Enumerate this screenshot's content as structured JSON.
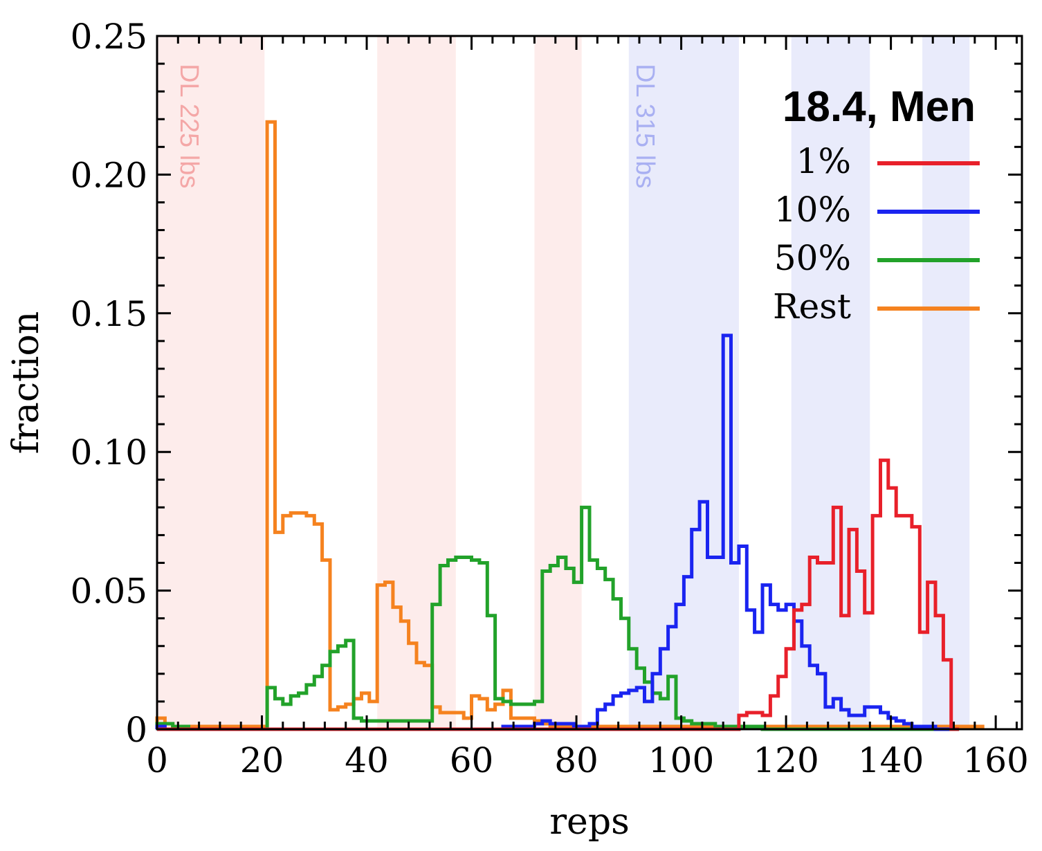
{
  "chart_data": {
    "type": "line",
    "style": "step-histogram",
    "title": "18.4, Men",
    "xlabel": "reps",
    "ylabel": "fraction",
    "xlim": [
      0,
      165
    ],
    "ylim": [
      0,
      0.25
    ],
    "xticks": [
      0,
      20,
      40,
      60,
      80,
      100,
      120,
      140,
      160
    ],
    "xtick_labels": [
      "0",
      "20",
      "40",
      "60",
      "80",
      "100",
      "120",
      "140",
      "160"
    ],
    "yticks": [
      0,
      0.05,
      0.1,
      0.15,
      0.2,
      0.25
    ],
    "ytick_labels": [
      "0",
      "0.05",
      "0.10",
      "0.15",
      "0.20",
      "0.25"
    ],
    "grid": false,
    "legend_position": "top-right",
    "bin_width": 1.5,
    "x_start": 0,
    "bands": [
      {
        "x0": 0,
        "x1": 20.5,
        "color": "#fdeceb"
      },
      {
        "x0": 42,
        "x1": 57,
        "color": "#fdeceb"
      },
      {
        "x0": 72,
        "x1": 81,
        "color": "#fdeceb"
      },
      {
        "x0": 90,
        "x1": 111,
        "color": "#e9ebfb"
      },
      {
        "x0": 121,
        "x1": 136,
        "color": "#e9ebfb"
      },
      {
        "x0": 146,
        "x1": 155,
        "color": "#e9ebfb"
      }
    ],
    "band_labels": [
      {
        "text": "DL 225 lbs",
        "x": 4.5,
        "y": 0.24,
        "color": "#f4a7a7"
      },
      {
        "text": "DL 315 lbs",
        "x": 91.5,
        "y": 0.24,
        "color": "#a9b0f2"
      }
    ],
    "series": [
      {
        "name": "1%",
        "color": "#e8202a",
        "values": [
          0,
          0,
          0,
          0,
          0,
          0,
          0,
          0,
          0,
          0,
          0,
          0,
          0,
          0,
          0,
          0,
          0,
          0,
          0,
          0,
          0,
          0,
          0,
          0,
          0,
          0,
          0,
          0,
          0,
          0,
          0,
          0,
          0,
          0,
          0,
          0,
          0,
          0,
          0,
          0,
          0,
          0,
          0,
          0,
          0,
          0,
          0,
          0,
          0,
          0,
          0,
          0,
          0,
          0,
          0,
          0,
          0,
          0,
          0,
          0,
          0,
          0,
          0,
          0,
          0,
          0,
          0,
          0,
          0,
          0,
          0,
          0,
          0,
          0,
          0.005,
          0.006,
          0.006,
          0.005,
          0.012,
          0.019,
          0.029,
          0.043,
          0.045,
          0.062,
          0.06,
          0.06,
          0.08,
          0.041,
          0.072,
          0.057,
          0.042,
          0.077,
          0.097,
          0.087,
          0.077,
          0.077,
          0.073,
          0.035,
          0.053,
          0.041,
          0.025,
          0.0
        ]
      },
      {
        "name": "10%",
        "color": "#1a24f0",
        "values": [
          0.001,
          0.0,
          0.0,
          0.0,
          0.0,
          0.0,
          0.0,
          0.0,
          0.0,
          0.0,
          0.0,
          0.0,
          0.0,
          0.0,
          0.0,
          0.0,
          0.0,
          0.0,
          0.0,
          0.0,
          0.0,
          0.0,
          0.0,
          0.0,
          0.0,
          0.0,
          0.0,
          0.0,
          0.0,
          0.0,
          0.0,
          0.0,
          0.0,
          0.0,
          0.0,
          0.0,
          0.0,
          0.0,
          0.0,
          0.0,
          0.0,
          0.0,
          0.0,
          0.0,
          0.001,
          0.001,
          0.001,
          0.001,
          0.002,
          0.003,
          0.002,
          0.002,
          0.002,
          0.001,
          0.001,
          0.002,
          0.007,
          0.009,
          0.012,
          0.013,
          0.014,
          0.015,
          0.01,
          0.02,
          0.029,
          0.037,
          0.045,
          0.055,
          0.072,
          0.082,
          0.062,
          0.062,
          0.142,
          0.06,
          0.066,
          0.043,
          0.035,
          0.052,
          0.045,
          0.043,
          0.045,
          0.039,
          0.03,
          0.023,
          0.02,
          0.008,
          0.011,
          0.007,
          0.005,
          0.005,
          0.008,
          0.008,
          0.006,
          0.004,
          0.003,
          0.002,
          0.001,
          0.001,
          0.001,
          0.0,
          0.0
        ]
      },
      {
        "name": "50%",
        "color": "#22a22a",
        "values": [
          0.002,
          0.002,
          0.001,
          0.001,
          0.0,
          0.0,
          0.0,
          0.0,
          0.0,
          0.0,
          0.0,
          0.0,
          0.0,
          0.0,
          0.015,
          0.011,
          0.009,
          0.012,
          0.013,
          0.016,
          0.019,
          0.023,
          0.028,
          0.03,
          0.032,
          0.004,
          0.003,
          0.003,
          0.003,
          0.003,
          0.003,
          0.003,
          0.003,
          0.003,
          0.003,
          0.045,
          0.059,
          0.061,
          0.062,
          0.062,
          0.061,
          0.06,
          0.041,
          0.011,
          0.01,
          0.009,
          0.009,
          0.009,
          0.01,
          0.057,
          0.059,
          0.062,
          0.058,
          0.053,
          0.08,
          0.061,
          0.058,
          0.054,
          0.047,
          0.04,
          0.029,
          0.022,
          0.017,
          0.013,
          0.011,
          0.019,
          0.004,
          0.003,
          0.002,
          0.002,
          0.002,
          0.001,
          0.001,
          0.001,
          0.001,
          0.001,
          0.001,
          0.0,
          0.0,
          0.0,
          0.0,
          0.0,
          0.0,
          0.0,
          0.0,
          0.0,
          0.0,
          0.0,
          0.0,
          0.0,
          0.0,
          0.0,
          0.0,
          0.0,
          0.0,
          0.0,
          0.0,
          0.0,
          0.0,
          0.0,
          0.0
        ]
      },
      {
        "name": "Rest",
        "color": "#f5821f",
        "values": [
          0.004,
          0.002,
          0.001,
          0.001,
          0.001,
          0.001,
          0.001,
          0.001,
          0.001,
          0.001,
          0.001,
          0.001,
          0.001,
          0.001,
          0.219,
          0.071,
          0.077,
          0.078,
          0.078,
          0.077,
          0.074,
          0.061,
          0.007,
          0.008,
          0.009,
          0.011,
          0.013,
          0.01,
          0.052,
          0.053,
          0.044,
          0.039,
          0.031,
          0.024,
          0.023,
          0.008,
          0.006,
          0.006,
          0.006,
          0.004,
          0.012,
          0.011,
          0.007,
          0.009,
          0.014,
          0.004,
          0.004,
          0.004,
          0.003,
          0.002,
          0.001,
          0.001,
          0.001,
          0.001,
          0.001,
          0.001,
          0.001,
          0.001,
          0.001,
          0.001,
          0.001,
          0.001,
          0.001,
          0.001,
          0.001,
          0.001,
          0.001,
          0.001,
          0.001,
          0.001,
          0.001,
          0.001,
          0.001,
          0.001,
          0.001,
          0.001,
          0.001,
          0.001,
          0.001,
          0.001,
          0.001,
          0.001,
          0.001,
          0.001,
          0.001,
          0.001,
          0.001,
          0.001,
          0.001,
          0.001,
          0.001,
          0.001,
          0.001,
          0.001,
          0.001,
          0.001,
          0.001,
          0.001,
          0.001,
          0.001,
          0.001,
          0.001,
          0.001,
          0.001,
          0.001
        ]
      }
    ]
  }
}
